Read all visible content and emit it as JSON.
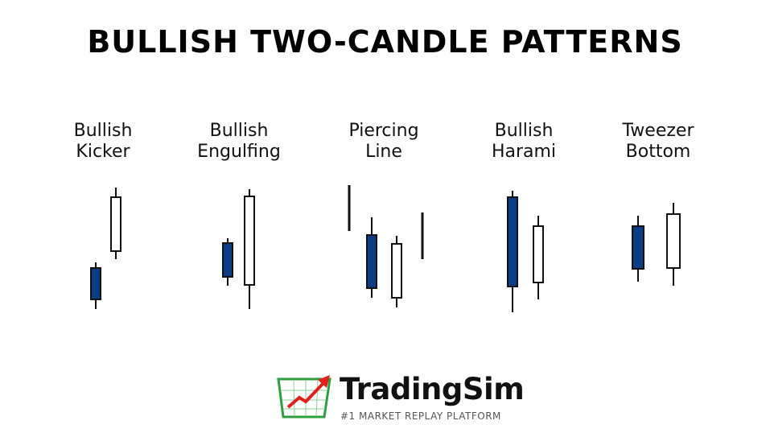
{
  "title": "BULLISH TWO-CANDLE PATTERNS",
  "patterns": [
    {
      "line1": "Bullish",
      "line2": "Kicker"
    },
    {
      "line1": "Bullish",
      "line2": "Engulfing"
    },
    {
      "line1": "Piercing",
      "line2": "Line"
    },
    {
      "line1": "Bullish",
      "line2": "Harami"
    },
    {
      "line1": "Tweezer",
      "line2": "Bottom"
    }
  ],
  "colors": {
    "bearish": "#0b3d86",
    "bullish": "#ffffff",
    "outline": "#111111",
    "logo_green": "#2e9e3e",
    "logo_red": "#e0201b"
  },
  "logo": {
    "name": "TradingSim",
    "tagline": "#1 MARKET REPLAY PLATFORM"
  }
}
